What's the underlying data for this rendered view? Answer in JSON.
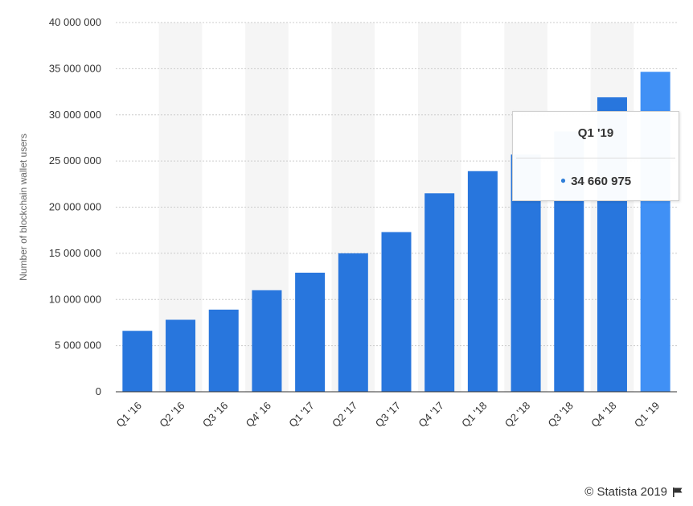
{
  "chart_data": {
    "type": "bar",
    "categories": [
      "Q1 '16",
      "Q2 '16",
      "Q3 '16",
      "Q4' 16",
      "Q1 '17",
      "Q2 '17",
      "Q3 '17",
      "Q4 '17",
      "Q1 '18",
      "Q2 '18",
      "Q3 '18",
      "Q4 '18",
      "Q1 '19"
    ],
    "values": [
      6600000,
      7800000,
      8900000,
      11000000,
      12900000,
      15000000,
      17300000,
      21500000,
      23900000,
      25700000,
      28200000,
      31900000,
      34660975
    ],
    "ylabel": "Number of blockchain wallet users",
    "xlabel": "",
    "ylim": [
      0,
      40000000
    ],
    "yticks": [
      "0",
      "5 000 000",
      "10 000 000",
      "15 000 000",
      "20 000 000",
      "25 000 000",
      "30 000 000",
      "35 000 000",
      "40 000 000"
    ],
    "grid": true,
    "colors": {
      "bar": "#2876dd",
      "highlight": "#4090f5",
      "band": "#f5f5f5",
      "grid": "#cccccc"
    },
    "highlighted_index": 12
  },
  "tooltip": {
    "title": "Q1 '19",
    "value": "34 660 975"
  },
  "credit": {
    "text": "© Statista 2019",
    "icon": "flag-icon"
  }
}
